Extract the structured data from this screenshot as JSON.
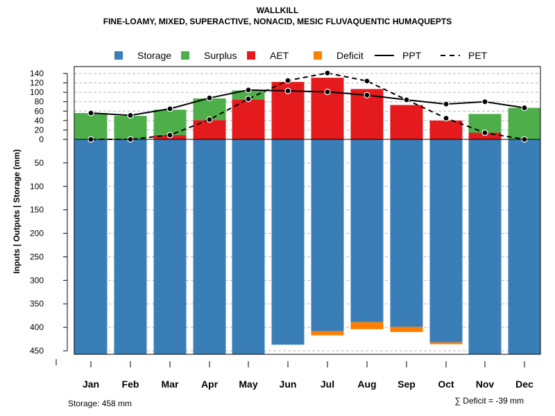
{
  "chart_data": {
    "type": "bar",
    "title": "WALLKILL",
    "subtitle": "FINE-LOAMY, MIXED, SUPERACTIVE, NONACID, MESIC FLUVAQUENTIC HUMAQUEPTS",
    "ylabel": "Inputs | Outputs | Storage     (mm)",
    "categories": [
      "Jan",
      "Feb",
      "Mar",
      "Apr",
      "May",
      "Jun",
      "Jul",
      "Aug",
      "Sep",
      "Oct",
      "Nov",
      "Dec"
    ],
    "upper_ticks": [
      0,
      20,
      40,
      60,
      80,
      100,
      120,
      140
    ],
    "lower_ticks": [
      0,
      50,
      100,
      150,
      200,
      250,
      300,
      350,
      400,
      450
    ],
    "upper_ylim": [
      0,
      140
    ],
    "lower_ylim": [
      0,
      458
    ],
    "legend": [
      {
        "label": "Storage",
        "kind": "box",
        "color": "#3A7EB8"
      },
      {
        "label": "Surplus",
        "kind": "box",
        "color": "#4DAE4A"
      },
      {
        "label": "AET",
        "kind": "box",
        "color": "#E41A1C"
      },
      {
        "label": "Deficit",
        "kind": "box",
        "color": "#FF7F00"
      },
      {
        "label": "PPT",
        "kind": "solid",
        "color": "#000000"
      },
      {
        "label": "PET",
        "kind": "dashed",
        "color": "#000000"
      }
    ],
    "series": [
      {
        "name": "AET",
        "values": [
          0,
          0,
          9,
          41,
          84,
          122,
          131,
          107,
          73,
          40,
          14,
          0
        ]
      },
      {
        "name": "Surplus",
        "values": [
          56,
          50,
          54,
          46,
          20,
          0,
          0,
          0,
          0,
          0,
          40,
          67
        ]
      },
      {
        "name": "PPT",
        "values": [
          56,
          51,
          65,
          88,
          105,
          103,
          101,
          94,
          84,
          75,
          80,
          67
        ]
      },
      {
        "name": "PET",
        "values": [
          0,
          0,
          9,
          42,
          86,
          125,
          141,
          124,
          84,
          45,
          14,
          0
        ]
      },
      {
        "name": "Storage",
        "values": [
          458,
          458,
          458,
          458,
          458,
          437,
          408,
          389,
          399,
          432,
          458,
          458
        ]
      },
      {
        "name": "Deficit",
        "values": [
          0,
          0,
          0,
          0,
          0,
          0,
          9,
          15,
          11,
          4,
          0,
          0
        ]
      }
    ],
    "colors": {
      "storage": "#3A7EB8",
      "surplus": "#4DAE4A",
      "aet": "#E41A1C",
      "deficit": "#FF7F00"
    }
  },
  "footer": {
    "storage_text": "Storage: 458 mm",
    "deficit_text": "∑ Deficit = -39 mm"
  }
}
